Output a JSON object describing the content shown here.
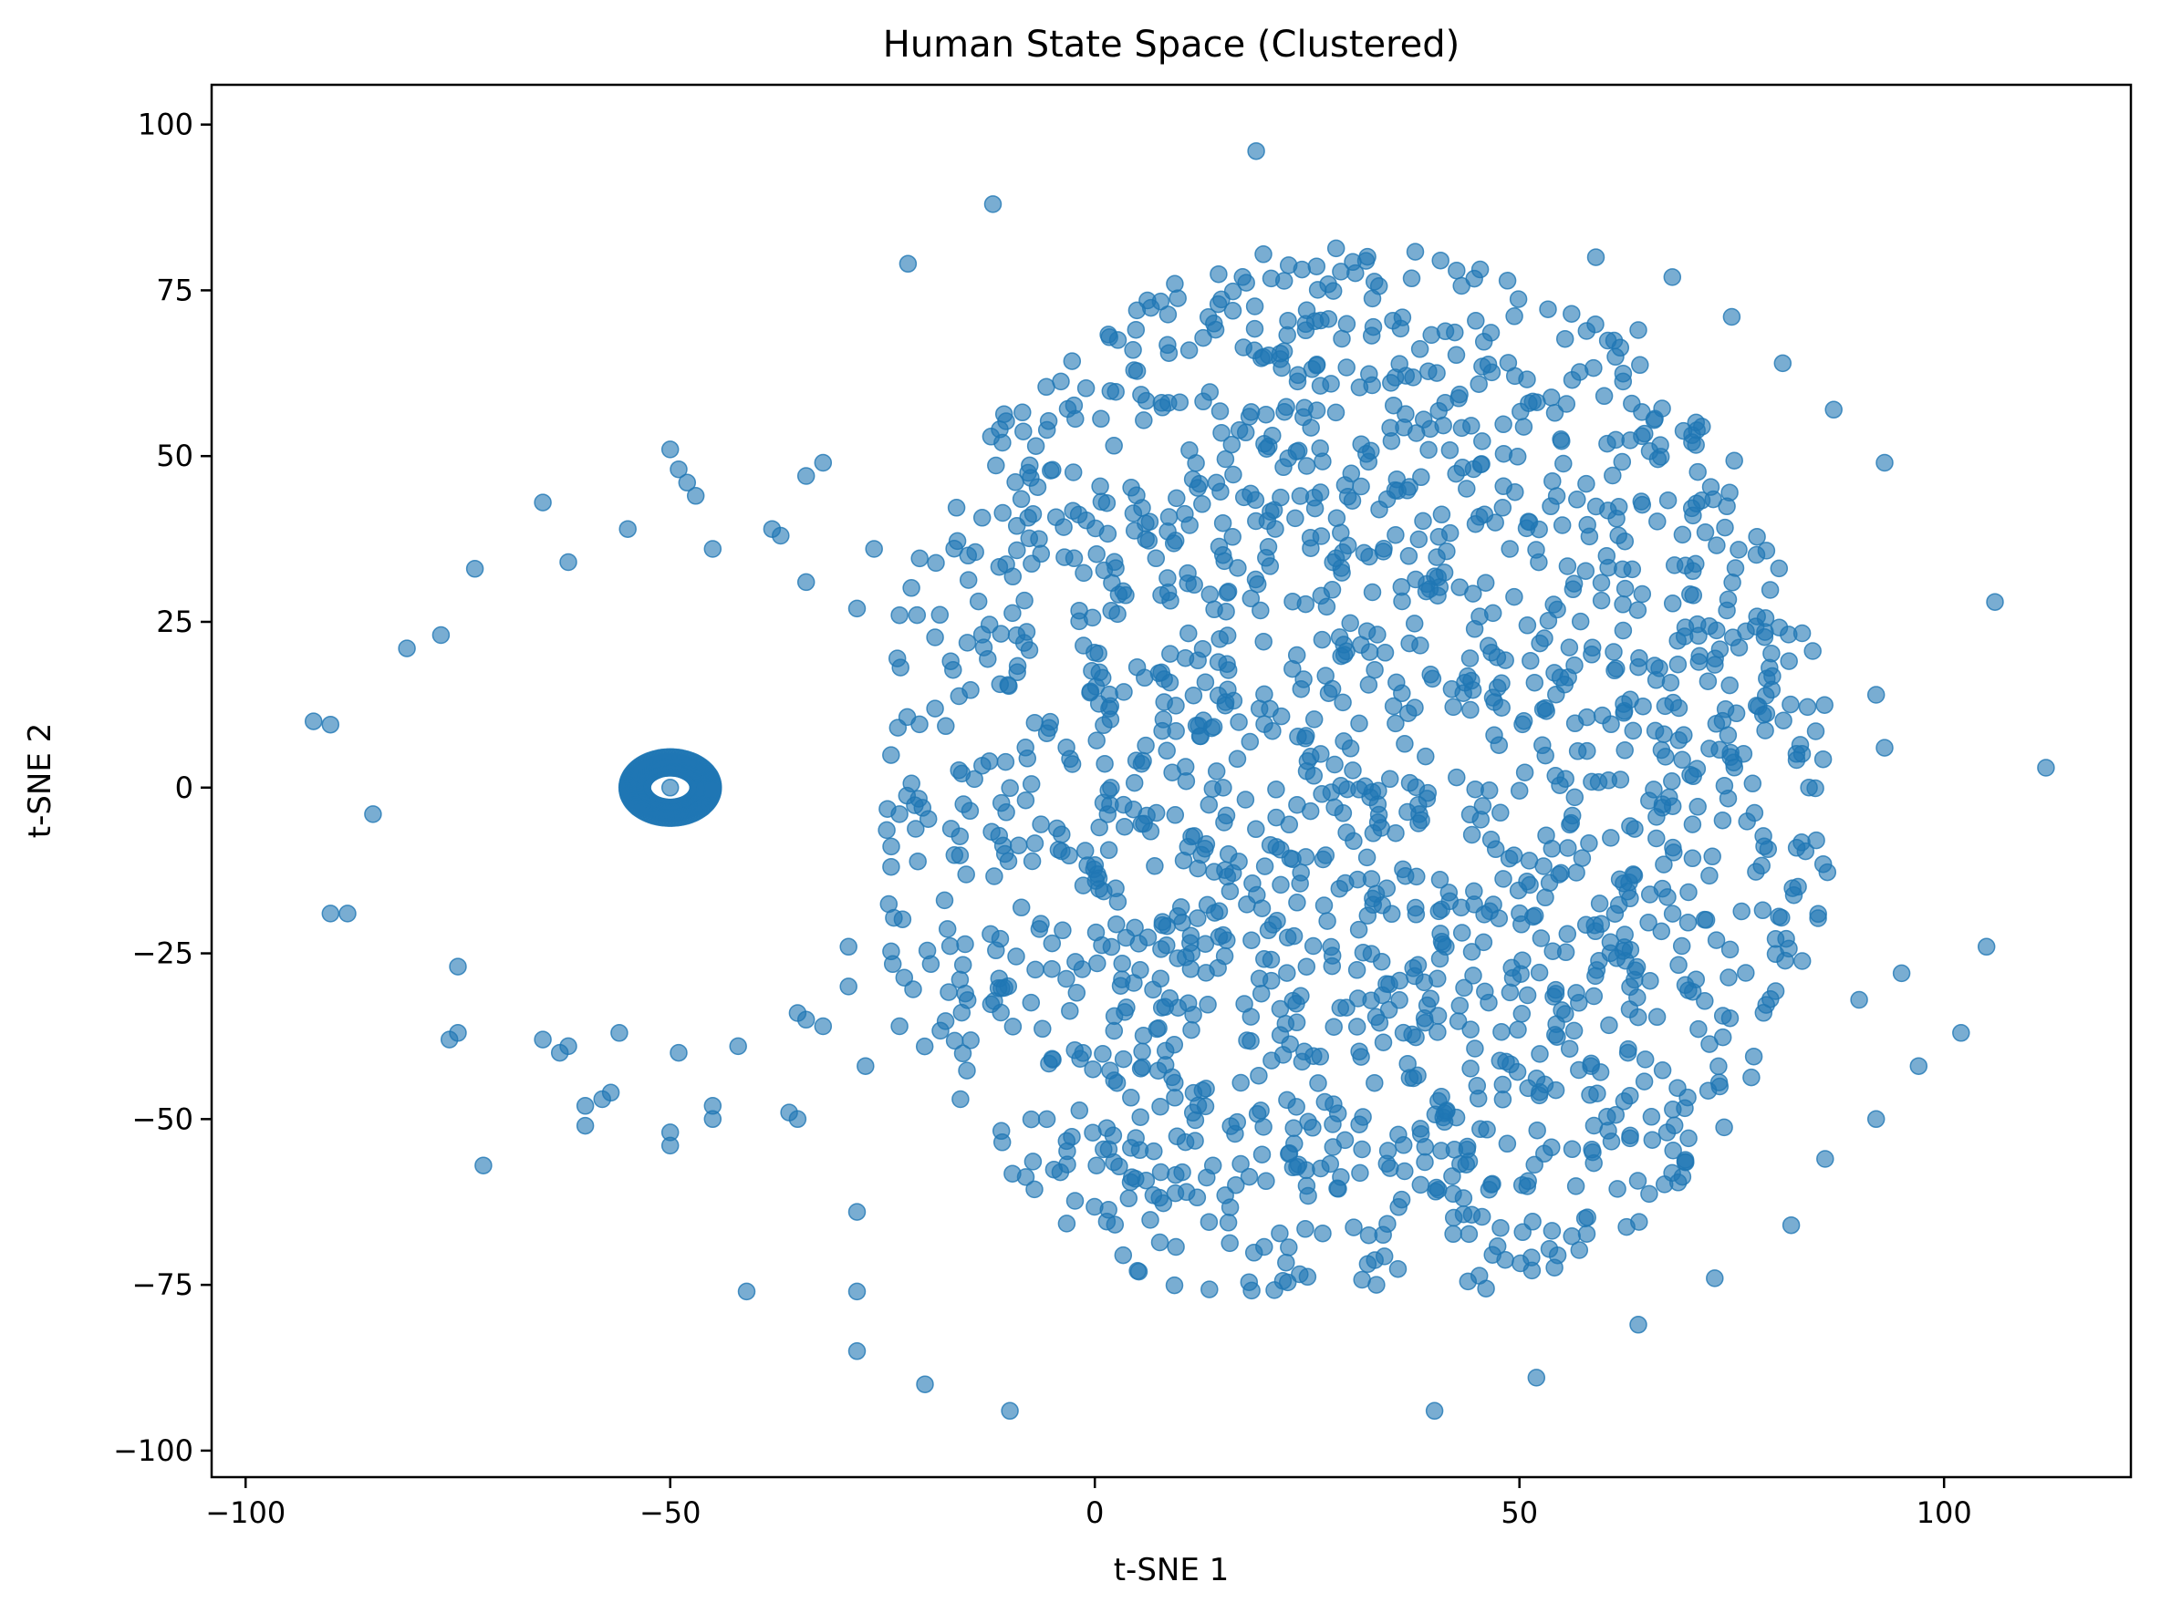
{
  "chart_data": {
    "type": "scatter",
    "title": "Human State Space (Clustered)",
    "xlabel": "t-SNE 1",
    "ylabel": "t-SNE 2",
    "xlim": [
      -104,
      122
    ],
    "ylim": [
      -104,
      106
    ],
    "xticks": [
      -100,
      -50,
      0,
      50,
      100
    ],
    "xtick_labels": [
      "−100",
      "−50",
      "0",
      "50",
      "100"
    ],
    "yticks": [
      -100,
      -75,
      -50,
      -25,
      0,
      25,
      50,
      75,
      100
    ],
    "ytick_labels": [
      "−100",
      "−75",
      "−50",
      "−25",
      "0",
      "25",
      "50",
      "75",
      "100"
    ],
    "grid": false,
    "legend": "none",
    "point_color": "#1f77b4",
    "point_alpha": 0.6,
    "ring": {
      "center": [
        -50,
        0
      ],
      "radii": [
        3.0,
        3.8,
        4.6
      ],
      "points_per_ring": 90
    },
    "outliers": [
      [
        -92,
        10
      ],
      [
        -90,
        9.5
      ],
      [
        -85,
        -4
      ],
      [
        -81,
        21
      ],
      [
        -77,
        23
      ],
      [
        -73,
        33
      ],
      [
        -65,
        43
      ],
      [
        -62,
        34
      ],
      [
        -55,
        39
      ],
      [
        -50,
        51
      ],
      [
        -49,
        48
      ],
      [
        -48,
        46
      ],
      [
        -47,
        44
      ],
      [
        -45,
        36
      ],
      [
        -38,
        39
      ],
      [
        -37,
        38
      ],
      [
        -34,
        31
      ],
      [
        -34,
        47
      ],
      [
        -32,
        49
      ],
      [
        -28,
        27
      ],
      [
        -26,
        36
      ],
      [
        -23,
        26
      ],
      [
        -22,
        79
      ],
      [
        -12,
        88
      ],
      [
        -90,
        -19
      ],
      [
        -88,
        -19
      ],
      [
        -75,
        -27
      ],
      [
        -76,
        -38
      ],
      [
        -75,
        -37
      ],
      [
        -72,
        -57
      ],
      [
        -65,
        -38
      ],
      [
        -63,
        -40
      ],
      [
        -62,
        -39
      ],
      [
        -60,
        -48
      ],
      [
        -60,
        -51
      ],
      [
        -58,
        -47
      ],
      [
        -57,
        -46
      ],
      [
        -56,
        -37
      ],
      [
        -50,
        -52
      ],
      [
        -50,
        -54
      ],
      [
        -49,
        -40
      ],
      [
        -45,
        -48
      ],
      [
        -45,
        -50
      ],
      [
        -42,
        -39
      ],
      [
        -41,
        -76
      ],
      [
        -36,
        -49
      ],
      [
        -35,
        -50
      ],
      [
        -35,
        -34
      ],
      [
        -34,
        -35
      ],
      [
        -32,
        -36
      ],
      [
        -29,
        -24
      ],
      [
        -29,
        -30
      ],
      [
        -28,
        -64
      ],
      [
        -28,
        -76
      ],
      [
        -28,
        -85
      ],
      [
        -27,
        -42
      ],
      [
        -23,
        -4
      ],
      [
        -23,
        -36
      ],
      [
        -20,
        -90
      ],
      [
        -10,
        -94
      ],
      [
        19,
        96
      ],
      [
        59,
        80
      ],
      [
        64,
        69
      ],
      [
        68,
        77
      ],
      [
        75,
        71
      ],
      [
        81,
        64
      ],
      [
        87,
        57
      ],
      [
        93,
        49
      ],
      [
        106,
        28
      ],
      [
        92,
        14
      ],
      [
        112,
        3
      ],
      [
        93,
        6
      ],
      [
        105,
        -24
      ],
      [
        95,
        -28
      ],
      [
        90,
        -32
      ],
      [
        102,
        -37
      ],
      [
        97,
        -42
      ],
      [
        92,
        -50
      ],
      [
        86,
        -56
      ],
      [
        82,
        -66
      ],
      [
        73,
        -74
      ],
      [
        64,
        -81
      ],
      [
        52,
        -89
      ],
      [
        40,
        -94
      ]
    ],
    "cloud": {
      "seed": 20231,
      "count": 1700,
      "x_range": [
        -25,
        90
      ],
      "y_range": [
        -76,
        86
      ],
      "core_center": [
        30,
        0
      ],
      "core_radius": [
        57,
        82
      ]
    }
  }
}
